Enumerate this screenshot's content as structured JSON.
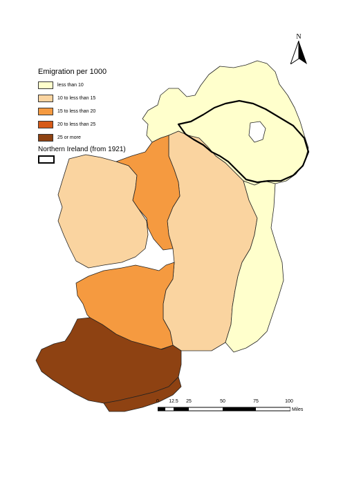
{
  "legend": {
    "title": "Emigration per 1000",
    "items": [
      {
        "label": "less than 10",
        "color": "#ffffcc"
      },
      {
        "label": "10 to less than 15",
        "color": "#fad4a0"
      },
      {
        "label": "15 to less than 20",
        "color": "#f59a40"
      },
      {
        "label": "20 to less than 25",
        "color": "#d65a18"
      },
      {
        "label": "25 or more",
        "color": "#8e4212"
      }
    ],
    "ni_label": "Northern Ireland (from 1921)"
  },
  "north_arrow": {
    "letter": "N"
  },
  "scale": {
    "ticks": [
      "0",
      "12.5",
      "25",
      "50",
      "75",
      "100"
    ],
    "units": "Miles"
  }
}
